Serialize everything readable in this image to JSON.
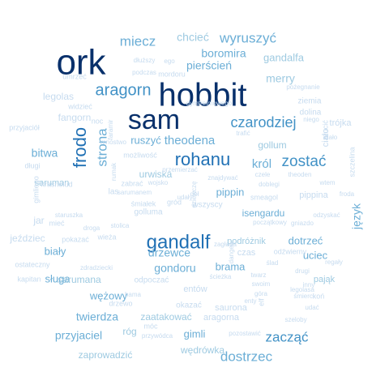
{
  "words": [
    {
      "text": "ork",
      "size": 44,
      "color": "#08306b",
      "rot": 0
    },
    {
      "text": "hobbit",
      "size": 40,
      "color": "#08306b",
      "rot": 0
    },
    {
      "text": "sam",
      "size": 34,
      "color": "#08306b",
      "rot": 0
    },
    {
      "text": "gandalf",
      "size": 24,
      "color": "#2171b5",
      "rot": 0
    },
    {
      "text": "rohanu",
      "size": 22,
      "color": "#2171b5",
      "rot": 0
    },
    {
      "text": "frodo",
      "size": 22,
      "color": "#2171b5",
      "rot": -90
    },
    {
      "text": "aragorn",
      "size": 20,
      "color": "#4292c6",
      "rot": 0
    },
    {
      "text": "zostać",
      "size": 19,
      "color": "#4292c6",
      "rot": 0
    },
    {
      "text": "czarodziej",
      "size": 18,
      "color": "#4292c6",
      "rot": 0
    },
    {
      "text": "wyruszyć",
      "size": 17,
      "color": "#6baed6",
      "rot": 0
    },
    {
      "text": "miecz",
      "size": 17,
      "color": "#6baed6",
      "rot": 0
    },
    {
      "text": "strona",
      "size": 17,
      "color": "#6baed6",
      "rot": -90
    },
    {
      "text": "zacząć",
      "size": 17,
      "color": "#4292c6",
      "rot": 0
    },
    {
      "text": "dostrzec",
      "size": 17,
      "color": "#6baed6",
      "rot": 0
    },
    {
      "text": "theodena",
      "size": 15,
      "color": "#6baed6",
      "rot": 0
    },
    {
      "text": "pierścień",
      "size": 14,
      "color": "#6baed6",
      "rot": 0
    },
    {
      "text": "boromira",
      "size": 14,
      "color": "#6baed6",
      "rot": 0
    },
    {
      "text": "chcieć",
      "size": 14,
      "color": "#9ecae1",
      "rot": 0
    },
    {
      "text": "merry",
      "size": 14,
      "color": "#9ecae1",
      "rot": 0
    },
    {
      "text": "bitwa",
      "size": 14,
      "color": "#6baed6",
      "rot": 0
    },
    {
      "text": "król",
      "size": 15,
      "color": "#6baed6",
      "rot": 0
    },
    {
      "text": "ruszyć",
      "size": 13,
      "color": "#6baed6",
      "rot": 0
    },
    {
      "text": "gondoru",
      "size": 14,
      "color": "#6baed6",
      "rot": 0
    },
    {
      "text": "drzewce",
      "size": 14,
      "color": "#6baed6",
      "rot": 0
    },
    {
      "text": "twierdza",
      "size": 14,
      "color": "#6baed6",
      "rot": 0
    },
    {
      "text": "przyjaciel",
      "size": 14,
      "color": "#6baed6",
      "rot": 0
    },
    {
      "text": "język",
      "size": 14,
      "color": "#6baed6",
      "rot": -90
    },
    {
      "text": "gandalfa",
      "size": 13,
      "color": "#9ecae1",
      "rot": 0
    },
    {
      "text": "gollum",
      "size": 12,
      "color": "#9ecae1",
      "rot": 0
    },
    {
      "text": "pippin",
      "size": 13,
      "color": "#6baed6",
      "rot": 0
    },
    {
      "text": "isengardu",
      "size": 12,
      "color": "#6baed6",
      "rot": 0
    },
    {
      "text": "dotrzeć",
      "size": 13,
      "color": "#6baed6",
      "rot": 0
    },
    {
      "text": "uciec",
      "size": 13,
      "color": "#6baed6",
      "rot": 0
    },
    {
      "text": "biały",
      "size": 13,
      "color": "#6baed6",
      "rot": 0
    },
    {
      "text": "sługa",
      "size": 13,
      "color": "#6baed6",
      "rot": 0
    },
    {
      "text": "brama",
      "size": 13,
      "color": "#6baed6",
      "rot": 0
    },
    {
      "text": "wężowy",
      "size": 13,
      "color": "#6baed6",
      "rot": 0
    },
    {
      "text": "gimli",
      "size": 13,
      "color": "#6baed6",
      "rot": 0
    },
    {
      "text": "urwiska",
      "size": 12,
      "color": "#9ecae1",
      "rot": 0
    },
    {
      "text": "saruman",
      "size": 11,
      "color": "#9ecae1",
      "rot": 0
    },
    {
      "text": "sarumana",
      "size": 12,
      "color": "#9ecae1",
      "rot": 0
    },
    {
      "text": "podróżnik",
      "size": 11,
      "color": "#9ecae1",
      "rot": 0
    },
    {
      "text": "pająk",
      "size": 11,
      "color": "#9ecae1",
      "rot": 0
    },
    {
      "text": "zaatakować",
      "size": 12,
      "color": "#9ecae1",
      "rot": 0
    },
    {
      "text": "wędrówka",
      "size": 12,
      "color": "#9ecae1",
      "rot": 0
    },
    {
      "text": "zaprowadzić",
      "size": 12,
      "color": "#9ecae1",
      "rot": 0
    },
    {
      "text": "legolas",
      "size": 12,
      "color": "#c6dbef",
      "rot": 0
    },
    {
      "text": "fangorn",
      "size": 12,
      "color": "#c6dbef",
      "rot": 0
    },
    {
      "text": "trójka",
      "size": 11,
      "color": "#c6dbef",
      "rot": 0
    },
    {
      "text": "ziemia",
      "size": 10,
      "color": "#c6dbef",
      "rot": 0
    },
    {
      "text": "dolina",
      "size": 10,
      "color": "#c6dbef",
      "rot": 0
    },
    {
      "text": "pippina",
      "size": 11,
      "color": "#c6dbef",
      "rot": 0
    },
    {
      "text": "rzucić",
      "size": 9,
      "color": "#c6dbef",
      "rot": -90
    },
    {
      "text": "ciało",
      "size": 11,
      "color": "#c6dbef",
      "rot": -90
    },
    {
      "text": "szczelina",
      "size": 9,
      "color": "#c6dbef",
      "rot": -90
    },
    {
      "text": "jar",
      "size": 12,
      "color": "#c6dbef",
      "rot": 0
    },
    {
      "text": "jeździec",
      "size": 12,
      "color": "#c6dbef",
      "rot": 0
    },
    {
      "text": "kapitan",
      "size": 9,
      "color": "#c6dbef",
      "rot": 0
    },
    {
      "text": "odpoczać",
      "size": 10,
      "color": "#c6dbef",
      "rot": 0
    },
    {
      "text": "entów",
      "size": 11,
      "color": "#c6dbef",
      "rot": 0
    },
    {
      "text": "aragorna",
      "size": 11,
      "color": "#c6dbef",
      "rot": 0
    },
    {
      "text": "saurona",
      "size": 11,
      "color": "#c6dbef",
      "rot": 0
    },
    {
      "text": "okazać",
      "size": 10,
      "color": "#c6dbef",
      "rot": 0
    },
    {
      "text": "róg",
      "size": 12,
      "color": "#9ecae1",
      "rot": 0
    },
    {
      "text": "umrzeć",
      "size": 9,
      "color": "#c6dbef",
      "rot": 0
    },
    {
      "text": "mordoru",
      "size": 9,
      "color": "#c6dbef",
      "rot": 0
    },
    {
      "text": "podczas",
      "size": 8,
      "color": "#c6dbef",
      "rot": 0
    },
    {
      "text": "dłuższy",
      "size": 8,
      "color": "#c6dbef",
      "rot": 0
    },
    {
      "text": "ego",
      "size": 8,
      "color": "#c6dbef",
      "rot": 0
    },
    {
      "text": "pożegnanie",
      "size": 8,
      "color": "#c6dbef",
      "rot": 0
    },
    {
      "text": "dymtrelmowego",
      "size": 8,
      "color": "#c6dbef",
      "rot": 0
    },
    {
      "text": "widzieć",
      "size": 9,
      "color": "#c6dbef",
      "rot": 0
    },
    {
      "text": "przyjaciół",
      "size": 9,
      "color": "#c6dbef",
      "rot": 0
    },
    {
      "text": "noc",
      "size": 9,
      "color": "#c6dbef",
      "rot": 0
    },
    {
      "text": "faramir",
      "size": 8,
      "color": "#c6dbef",
      "rot": -90
    },
    {
      "text": "mnóstwo",
      "size": 8,
      "color": "#c6dbef",
      "rot": 0
    },
    {
      "text": "możliwość",
      "size": 9,
      "color": "#c6dbef",
      "rot": 0
    },
    {
      "text": "długi",
      "size": 9,
      "color": "#c6dbef",
      "rot": 0
    },
    {
      "text": "krasnolud",
      "size": 9,
      "color": "#c6dbef",
      "rot": 0
    },
    {
      "text": "gimliego",
      "size": 9,
      "color": "#c6dbef",
      "rot": -90
    },
    {
      "text": "rumak",
      "size": 8,
      "color": "#c6dbef",
      "rot": -90
    },
    {
      "text": "przemierzać",
      "size": 8,
      "color": "#c6dbef",
      "rot": 0
    },
    {
      "text": "wojsko",
      "size": 8,
      "color": "#c6dbef",
      "rot": 0
    },
    {
      "text": "znajdywać",
      "size": 8,
      "color": "#c6dbef",
      "rot": 0
    },
    {
      "text": "zabrać",
      "size": 9,
      "color": "#c6dbef",
      "rot": 0
    },
    {
      "text": "sarumanem",
      "size": 8,
      "color": "#c6dbef",
      "rot": 0
    },
    {
      "text": "las",
      "size": 10,
      "color": "#c6dbef",
      "rot": 0
    },
    {
      "text": "śmiałek",
      "size": 9,
      "color": "#c6dbef",
      "rot": 0
    },
    {
      "text": "gród",
      "size": 9,
      "color": "#c6dbef",
      "rot": 0
    },
    {
      "text": "wszyscy",
      "size": 10,
      "color": "#c6dbef",
      "rot": 0
    },
    {
      "text": "golluma",
      "size": 10,
      "color": "#c6dbef",
      "rot": 0
    },
    {
      "text": "staruszka",
      "size": 8,
      "color": "#c6dbef",
      "rot": 0
    },
    {
      "text": "stolica",
      "size": 8,
      "color": "#c6dbef",
      "rot": 0
    },
    {
      "text": "droga",
      "size": 8,
      "color": "#c6dbef",
      "rot": 0
    },
    {
      "text": "mieć",
      "size": 9,
      "color": "#c6dbef",
      "rot": 0
    },
    {
      "text": "wieża",
      "size": 9,
      "color": "#c6dbef",
      "rot": 0
    },
    {
      "text": "pokazać",
      "size": 9,
      "color": "#c6dbef",
      "rot": 0
    },
    {
      "text": "ostateczny",
      "size": 9,
      "color": "#c6dbef",
      "rot": 0
    },
    {
      "text": "zdradziecki",
      "size": 8,
      "color": "#c6dbef",
      "rot": 0
    },
    {
      "text": "smeagol",
      "size": 9,
      "color": "#c6dbef",
      "rot": 0
    },
    {
      "text": "doblegi",
      "size": 8,
      "color": "#c6dbef",
      "rot": 0
    },
    {
      "text": "czele",
      "size": 8,
      "color": "#c6dbef",
      "rot": 0
    },
    {
      "text": "theoden",
      "size": 8,
      "color": "#c6dbef",
      "rot": 0
    },
    {
      "text": "wtem",
      "size": 8,
      "color": "#c6dbef",
      "rot": 0
    },
    {
      "text": "froda",
      "size": 8,
      "color": "#c6dbef",
      "rot": 0
    },
    {
      "text": "odzyskać",
      "size": 8,
      "color": "#c6dbef",
      "rot": 0
    },
    {
      "text": "gniazdo",
      "size": 8,
      "color": "#c6dbef",
      "rot": 0
    },
    {
      "text": "początkowy",
      "size": 8,
      "color": "#c6dbef",
      "rot": 0
    },
    {
      "text": "odźwierny",
      "size": 9,
      "color": "#c6dbef",
      "rot": 0
    },
    {
      "text": "zagłada",
      "size": 8,
      "color": "#c6dbef",
      "rot": 0
    },
    {
      "text": "ślad",
      "size": 8,
      "color": "#c6dbef",
      "rot": 0
    },
    {
      "text": "regały",
      "size": 8,
      "color": "#c6dbef",
      "rot": 0
    },
    {
      "text": "drugi",
      "size": 8,
      "color": "#c6dbef",
      "rot": 0
    },
    {
      "text": "twarz",
      "size": 8,
      "color": "#c6dbef",
      "rot": 0
    },
    {
      "text": "ścieżka",
      "size": 8,
      "color": "#c6dbef",
      "rot": 0
    },
    {
      "text": "swoim",
      "size": 8,
      "color": "#c6dbef",
      "rot": 0
    },
    {
      "text": "legolasa",
      "size": 8,
      "color": "#c6dbef",
      "rot": 0
    },
    {
      "text": "inny",
      "size": 8,
      "color": "#c6dbef",
      "rot": 0
    },
    {
      "text": "śmierci",
      "size": 8,
      "color": "#c6dbef",
      "rot": 0
    },
    {
      "text": "koń",
      "size": 9,
      "color": "#c6dbef",
      "rot": 0
    },
    {
      "text": "udać",
      "size": 8,
      "color": "#c6dbef",
      "rot": 0
    },
    {
      "text": "szeloby",
      "size": 8,
      "color": "#c6dbef",
      "rot": 0
    },
    {
      "text": "góra",
      "size": 8,
      "color": "#c6dbef",
      "rot": 0
    },
    {
      "text": "hama",
      "size": 8,
      "color": "#c6dbef",
      "rot": 0
    },
    {
      "text": "drzewo",
      "size": 9,
      "color": "#c6dbef",
      "rot": 0
    },
    {
      "text": "móc",
      "size": 9,
      "color": "#c6dbef",
      "rot": 0
    },
    {
      "text": "przywódca",
      "size": 8,
      "color": "#c6dbef",
      "rot": 0
    },
    {
      "text": "pozostawić",
      "size": 8,
      "color": "#c6dbef",
      "rot": 0
    },
    {
      "text": "enty",
      "size": 8,
      "color": "#c6dbef",
      "rot": 0
    },
    {
      "text": "elf",
      "size": 9,
      "color": "#c6dbef",
      "rot": -90
    },
    {
      "text": "dangeé",
      "size": 8,
      "color": "#c6dbef",
      "rot": -90
    },
    {
      "text": "czas",
      "size": 11,
      "color": "#c6dbef",
      "rot": 0
    },
    {
      "text": "niego",
      "size": 8,
      "color": "#c6dbef",
      "rot": 0
    },
    {
      "text": "ciało",
      "size": 8,
      "color": "#c6dbef",
      "rot": 0
    },
    {
      "text": "trafić",
      "size": 8,
      "color": "#c6dbef",
      "rot": 0
    },
    {
      "text": "udały",
      "size": 8,
      "color": "#c6dbef",
      "rot": 0
    },
    {
      "text": "dół",
      "size": 8,
      "color": "#c6dbef",
      "rot": 0
    },
    {
      "text": "dziewczę",
      "size": 8,
      "color": "#c6dbef",
      "rot": -90
    }
  ]
}
